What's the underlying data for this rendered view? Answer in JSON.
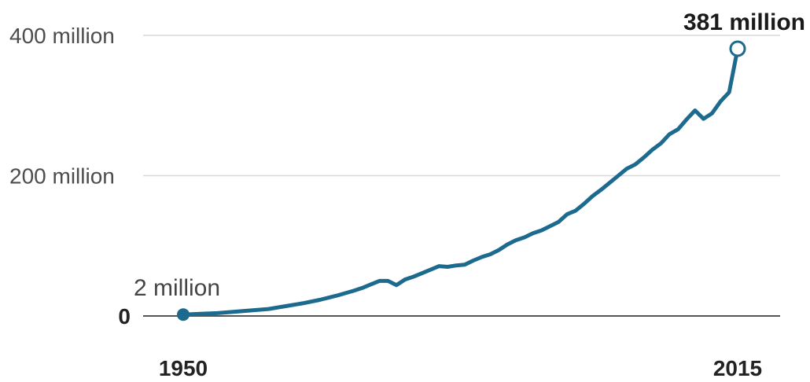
{
  "chart_data": {
    "type": "line",
    "title": "",
    "xlabel": "",
    "ylabel": "",
    "xlim": [
      1950,
      2015
    ],
    "ylim": [
      0,
      400
    ],
    "grid": true,
    "legend": "none",
    "y_ticks": [
      {
        "value": 0,
        "label": "0"
      },
      {
        "value": 200,
        "label": "200 million"
      },
      {
        "value": 400,
        "label": "400 million"
      }
    ],
    "x_ticks": [
      {
        "value": 1950,
        "label": "1950"
      },
      {
        "value": 2015,
        "label": "2015"
      }
    ],
    "series": [
      {
        "color": "#1d6a8f",
        "x": [
          1950,
          1952,
          1954,
          1956,
          1958,
          1960,
          1962,
          1964,
          1966,
          1968,
          1970,
          1971,
          1972,
          1973,
          1974,
          1975,
          1976,
          1977,
          1978,
          1979,
          1980,
          1981,
          1982,
          1983,
          1984,
          1985,
          1986,
          1987,
          1988,
          1989,
          1990,
          1991,
          1992,
          1993,
          1994,
          1995,
          1996,
          1997,
          1998,
          1999,
          2000,
          2001,
          2002,
          2003,
          2004,
          2005,
          2006,
          2007,
          2008,
          2009,
          2010,
          2011,
          2012,
          2013,
          2014,
          2015
        ],
        "y": [
          2,
          3,
          4,
          6,
          8,
          10,
          14,
          18,
          23,
          29,
          36,
          40,
          45,
          50,
          50,
          44,
          52,
          56,
          61,
          66,
          71,
          70,
          72,
          73,
          79,
          84,
          88,
          94,
          102,
          108,
          112,
          118,
          122,
          128,
          134,
          145,
          150,
          160,
          171,
          180,
          190,
          200,
          210,
          216,
          226,
          237,
          246,
          259,
          266,
          280,
          293,
          281,
          289,
          306,
          319,
          381
        ]
      }
    ],
    "annotations": [
      {
        "text": "2 million",
        "x": 1950,
        "y": 2
      },
      {
        "text": "381 million",
        "x": 2015,
        "y": 381
      }
    ]
  }
}
